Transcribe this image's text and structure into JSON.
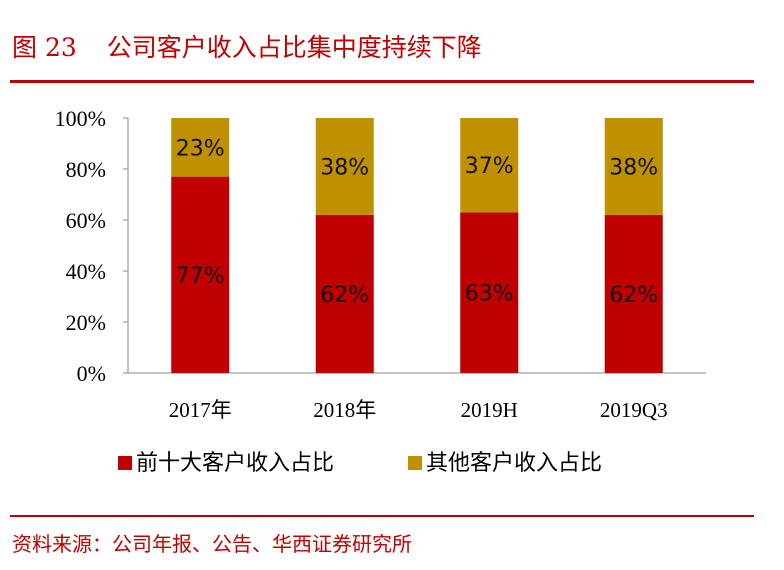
{
  "header": {
    "figure_number": "图 23",
    "title": "公司客户收入占比集中度持续下降"
  },
  "chart_data": {
    "type": "bar",
    "stacked": true,
    "categories": [
      "2017年",
      "2018年",
      "2019H",
      "2019Q3"
    ],
    "series": [
      {
        "name": "前十大客户收入占比",
        "values": [
          77,
          62,
          63,
          62
        ],
        "labels": [
          "77%",
          "62%",
          "63%",
          "62%"
        ],
        "color": "#c00000"
      },
      {
        "name": "其他客户收入占比",
        "values": [
          23,
          38,
          37,
          38
        ],
        "labels": [
          "23%",
          "38%",
          "37%",
          "38%"
        ],
        "color": "#bf9000"
      }
    ],
    "y_ticks": [
      "0%",
      "20%",
      "40%",
      "60%",
      "80%",
      "100%"
    ],
    "ylim": [
      0,
      100
    ],
    "legend": "bottom",
    "grid": false
  },
  "footer": {
    "source": "资料来源：公司年报、公告、华西证券研究所"
  }
}
